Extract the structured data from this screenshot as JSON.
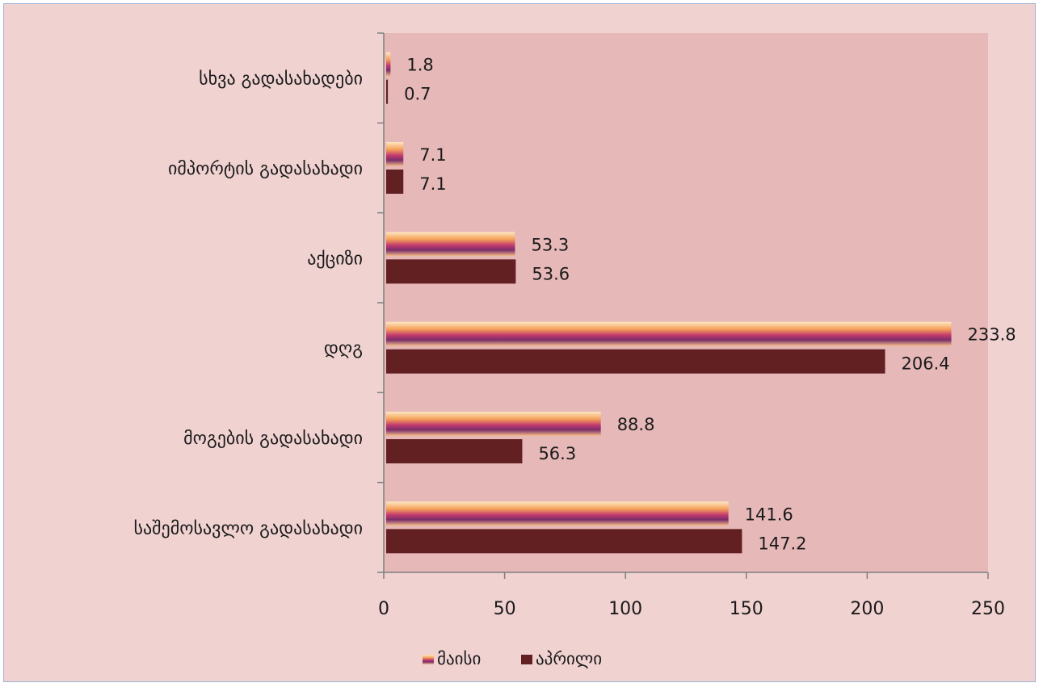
{
  "chart_data": {
    "type": "bar",
    "orientation": "horizontal",
    "categories": [
      "სხვა გადასახადები",
      "იმპორტის გადასახადი",
      "აქციზი",
      "დღგ",
      "მოგების გადასახადი",
      "საშემოსავლო გადასახადი"
    ],
    "series": [
      {
        "name": "მაისი",
        "values": [
          1.8,
          7.1,
          53.3,
          233.8,
          88.8,
          141.6
        ]
      },
      {
        "name": "აპრილი",
        "values": [
          0.7,
          7.1,
          53.6,
          206.4,
          56.3,
          147.2
        ]
      }
    ],
    "xlim": [
      0,
      250
    ],
    "xticks": [
      0,
      50,
      100,
      150,
      200,
      250
    ],
    "title": "",
    "xlabel": "",
    "ylabel": "",
    "legend_position": "bottom",
    "gridlines": false,
    "colors": {
      "plot_background": "#e6b8b8",
      "chart_background": "#f0d2d1",
      "series_1_light": "#fbd9a0",
      "series_1_orange": "#f5a25a",
      "series_1_magenta": "#c23a6e",
      "series_1_purple": "#7a2e6a",
      "series_2": "#632022",
      "axis": "#7f7f7f"
    }
  }
}
